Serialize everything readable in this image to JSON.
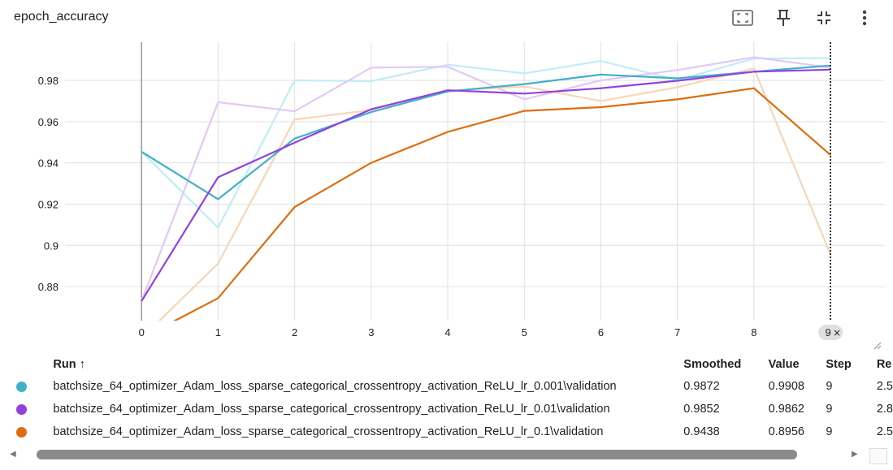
{
  "header": {
    "title": "epoch_accuracy",
    "tools": [
      "fit-domain-icon",
      "pin-icon",
      "collapse-icon",
      "more-vert-icon"
    ]
  },
  "chart_data": {
    "type": "line",
    "x": [
      0,
      1,
      2,
      3,
      4,
      5,
      6,
      7,
      8,
      9
    ],
    "xlim": [
      -1,
      9.7
    ],
    "ylim": [
      0.8635,
      0.9985
    ],
    "xticks": [
      "0",
      "1",
      "2",
      "3",
      "4",
      "5",
      "6",
      "7",
      "8"
    ],
    "yticks": [
      "0.88",
      "0.9",
      "0.92",
      "0.94",
      "0.96",
      "0.98"
    ],
    "hover_step": "9",
    "hover_close": "×",
    "grid": true,
    "series": [
      {
        "name": "batchsize_64_optimizer_Adam_loss_sparse_categorical_crossentropy_activation_ReLU_lr_0.001\\validation",
        "color": "#43b0c8",
        "raw_color": "#c1ecf7",
        "smoothed": [
          0.9454,
          0.9224,
          0.9518,
          0.9646,
          0.9746,
          0.9782,
          0.9828,
          0.981,
          0.9842,
          0.9872
        ],
        "raw": [
          0.9454,
          0.9086,
          0.98,
          0.9796,
          0.9876,
          0.9834,
          0.9894,
          0.9802,
          0.9906,
          0.9908
        ]
      },
      {
        "name": "batchsize_64_optimizer_Adam_loss_sparse_categorical_crossentropy_activation_ReLU_lr_0.01\\validation",
        "color": "#9141e0",
        "raw_color": "#e2c9f5",
        "smoothed": [
          0.873,
          0.933,
          0.9498,
          0.966,
          0.9752,
          0.9736,
          0.9762,
          0.9798,
          0.9842,
          0.9852
        ],
        "raw": [
          0.873,
          0.9694,
          0.965,
          0.9862,
          0.9866,
          0.9708,
          0.98,
          0.985,
          0.9912,
          0.9862
        ]
      },
      {
        "name": "batchsize_64_optimizer_Adam_loss_sparse_categorical_crossentropy_activation_ReLU_lr_0.1\\validation",
        "color": "#dd6d0e",
        "raw_color": "#f7d6b7",
        "smoothed": [
          0.855,
          0.8744,
          0.9186,
          0.94,
          0.955,
          0.9652,
          0.967,
          0.9708,
          0.9762,
          0.9438
        ],
        "raw": [
          0.855,
          0.8912,
          0.961,
          0.9656,
          0.975,
          0.977,
          0.97,
          0.9766,
          0.9858,
          0.8956
        ]
      }
    ]
  },
  "runs_table": {
    "columns": [
      "Run ↑",
      "Smoothed",
      "Value",
      "Step",
      "Re"
    ],
    "rows": [
      {
        "color": "#43b0c8",
        "run": "batchsize_64_optimizer_Adam_loss_sparse_categorical_crossentropy_activation_ReLU_lr_0.001\\validation",
        "smoothed": "0.9872",
        "value": "0.9908",
        "step": "9",
        "rel": "2.5"
      },
      {
        "color": "#9141e0",
        "run": "batchsize_64_optimizer_Adam_loss_sparse_categorical_crossentropy_activation_ReLU_lr_0.01\\validation",
        "smoothed": "0.9852",
        "value": "0.9862",
        "step": "9",
        "rel": "2.8"
      },
      {
        "color": "#dd6d0e",
        "run": "batchsize_64_optimizer_Adam_loss_sparse_categorical_crossentropy_activation_ReLU_lr_0.1\\validation",
        "smoothed": "0.9438",
        "value": "0.8956",
        "step": "9",
        "rel": "2.5"
      }
    ]
  },
  "scrollbar": {
    "left_arrow": "◀",
    "right_arrow": "▶"
  }
}
